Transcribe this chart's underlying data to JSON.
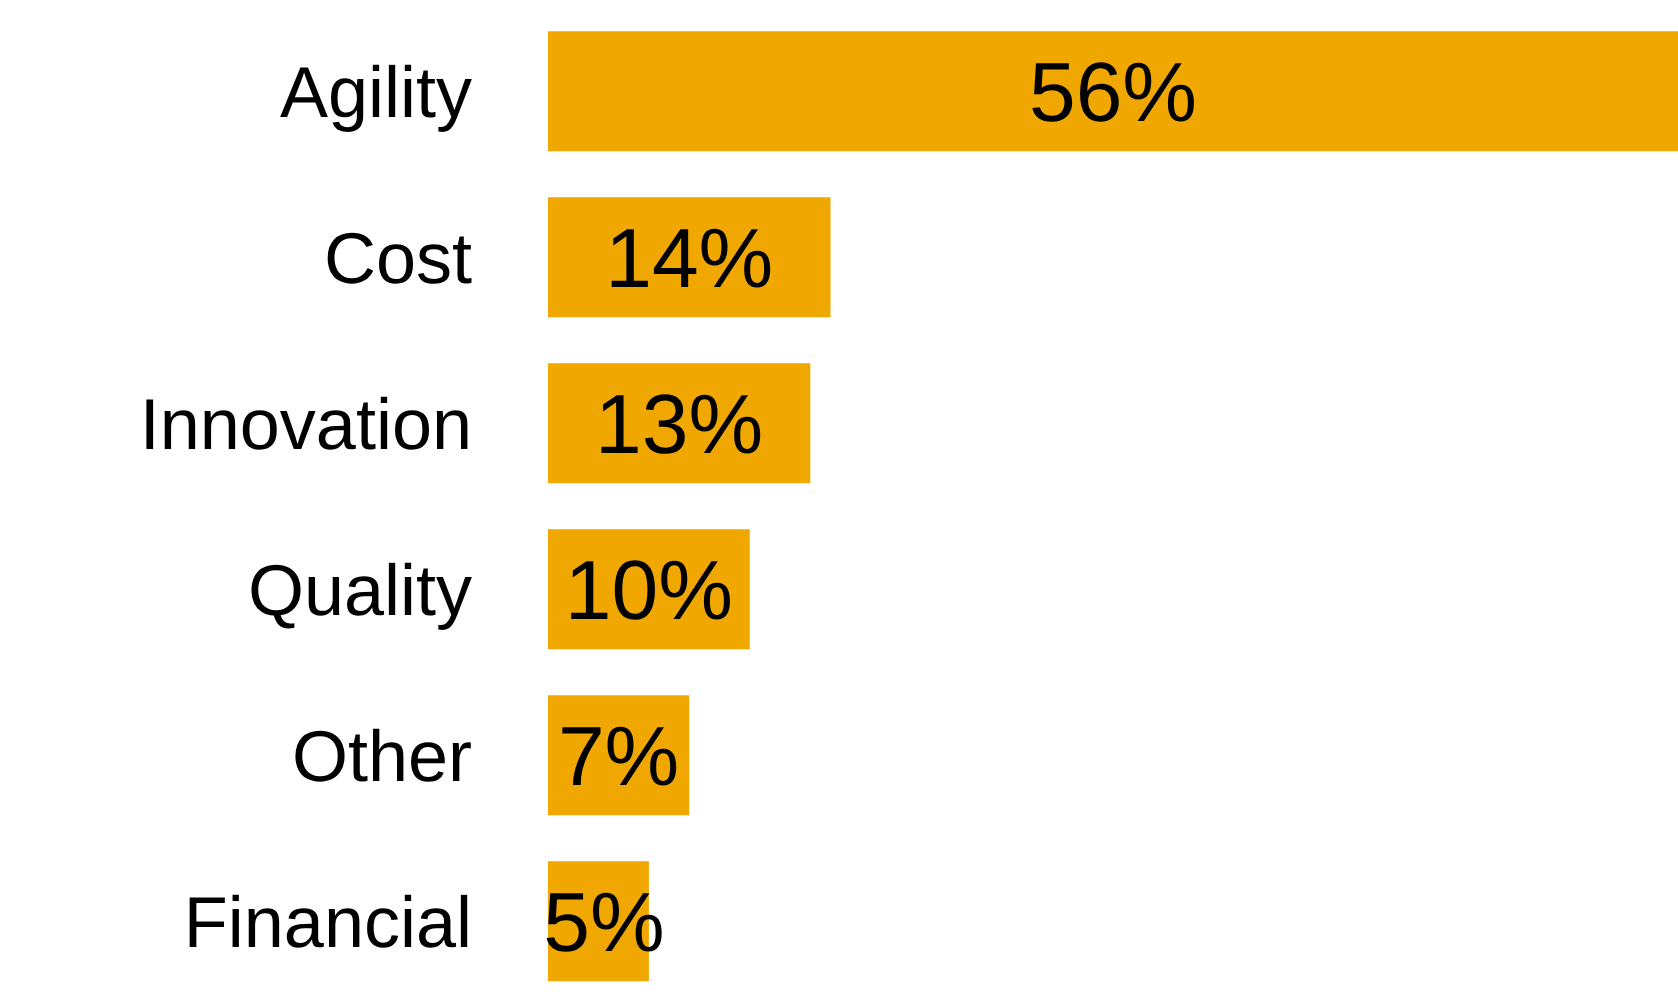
{
  "chart_data": {
    "type": "bar",
    "orientation": "horizontal",
    "categories": [
      "Agility",
      "Cost",
      "Innovation",
      "Quality",
      "Other",
      "Financial"
    ],
    "values": [
      56,
      14,
      13,
      10,
      7,
      5
    ],
    "value_labels": [
      "56%",
      "14%",
      "13%",
      "10%",
      "7%",
      "5%"
    ],
    "color": "#f0a800",
    "xlim": [
      0,
      56
    ]
  }
}
